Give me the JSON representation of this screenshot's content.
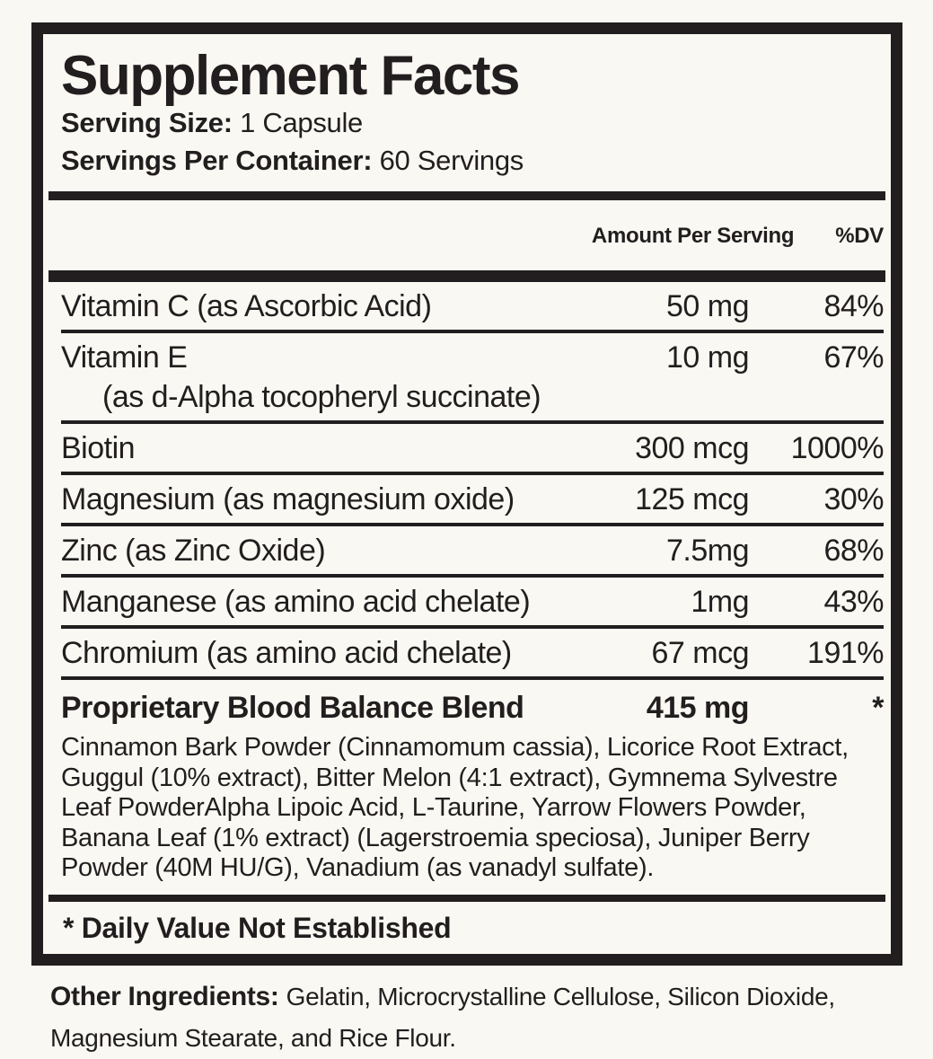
{
  "colors": {
    "ink": "#221e1f",
    "paper": "#faf8f2"
  },
  "panel": {
    "title": "Supplement Facts",
    "serving_size_label": "Serving Size:",
    "serving_size_value": "1 Capsule",
    "servings_per_container_label": "Servings Per Container:",
    "servings_per_container_value": "60 Servings",
    "columns": {
      "amount": "Amount Per Serving",
      "dv": "%DV"
    },
    "rows": [
      {
        "name": "Vitamin C (as Ascorbic Acid)",
        "amount": "50 mg",
        "dv": "84%"
      },
      {
        "name": "Vitamin E",
        "name2": "(as d-Alpha tocopheryl succinate)",
        "amount": "10 mg",
        "dv": "67%"
      },
      {
        "name": "Biotin",
        "amount": "300 mcg",
        "dv": "1000%"
      },
      {
        "name": "Magnesium (as magnesium oxide)",
        "amount": "125 mcg",
        "dv": "30%"
      },
      {
        "name": "Zinc (as Zinc Oxide)",
        "amount": "7.5mg",
        "dv": "68%"
      },
      {
        "name": "Manganese (as amino acid chelate)",
        "amount": "1mg",
        "dv": "43%"
      },
      {
        "name": "Chromium (as amino acid chelate)",
        "amount": "67 mcg",
        "dv": "191%"
      }
    ],
    "blend": {
      "name": "Proprietary Blood Balance Blend",
      "amount": "415 mg",
      "dv": "*",
      "description": "Cinnamon Bark Powder (Cinnamomum cassia), Licorice Root Extract, Guggul (10% extract), Bitter Melon (4:1 extract), Gymnema Sylvestre Leaf PowderAlpha Lipoic Acid, L-Taurine, Yarrow Flowers Powder, Banana Leaf (1% extract) (Lagerstroemia speciosa), Juniper Berry Powder (40M HU/G), Vanadium (as vanadyl sulfate)."
    },
    "footnote": "* Daily Value Not Established"
  },
  "other_ingredients": {
    "label": "Other Ingredients:",
    "value": "Gelatin, Microcrystalline Cellulose, Silicon Dioxide, Magnesium Stearate, and Rice Flour."
  }
}
